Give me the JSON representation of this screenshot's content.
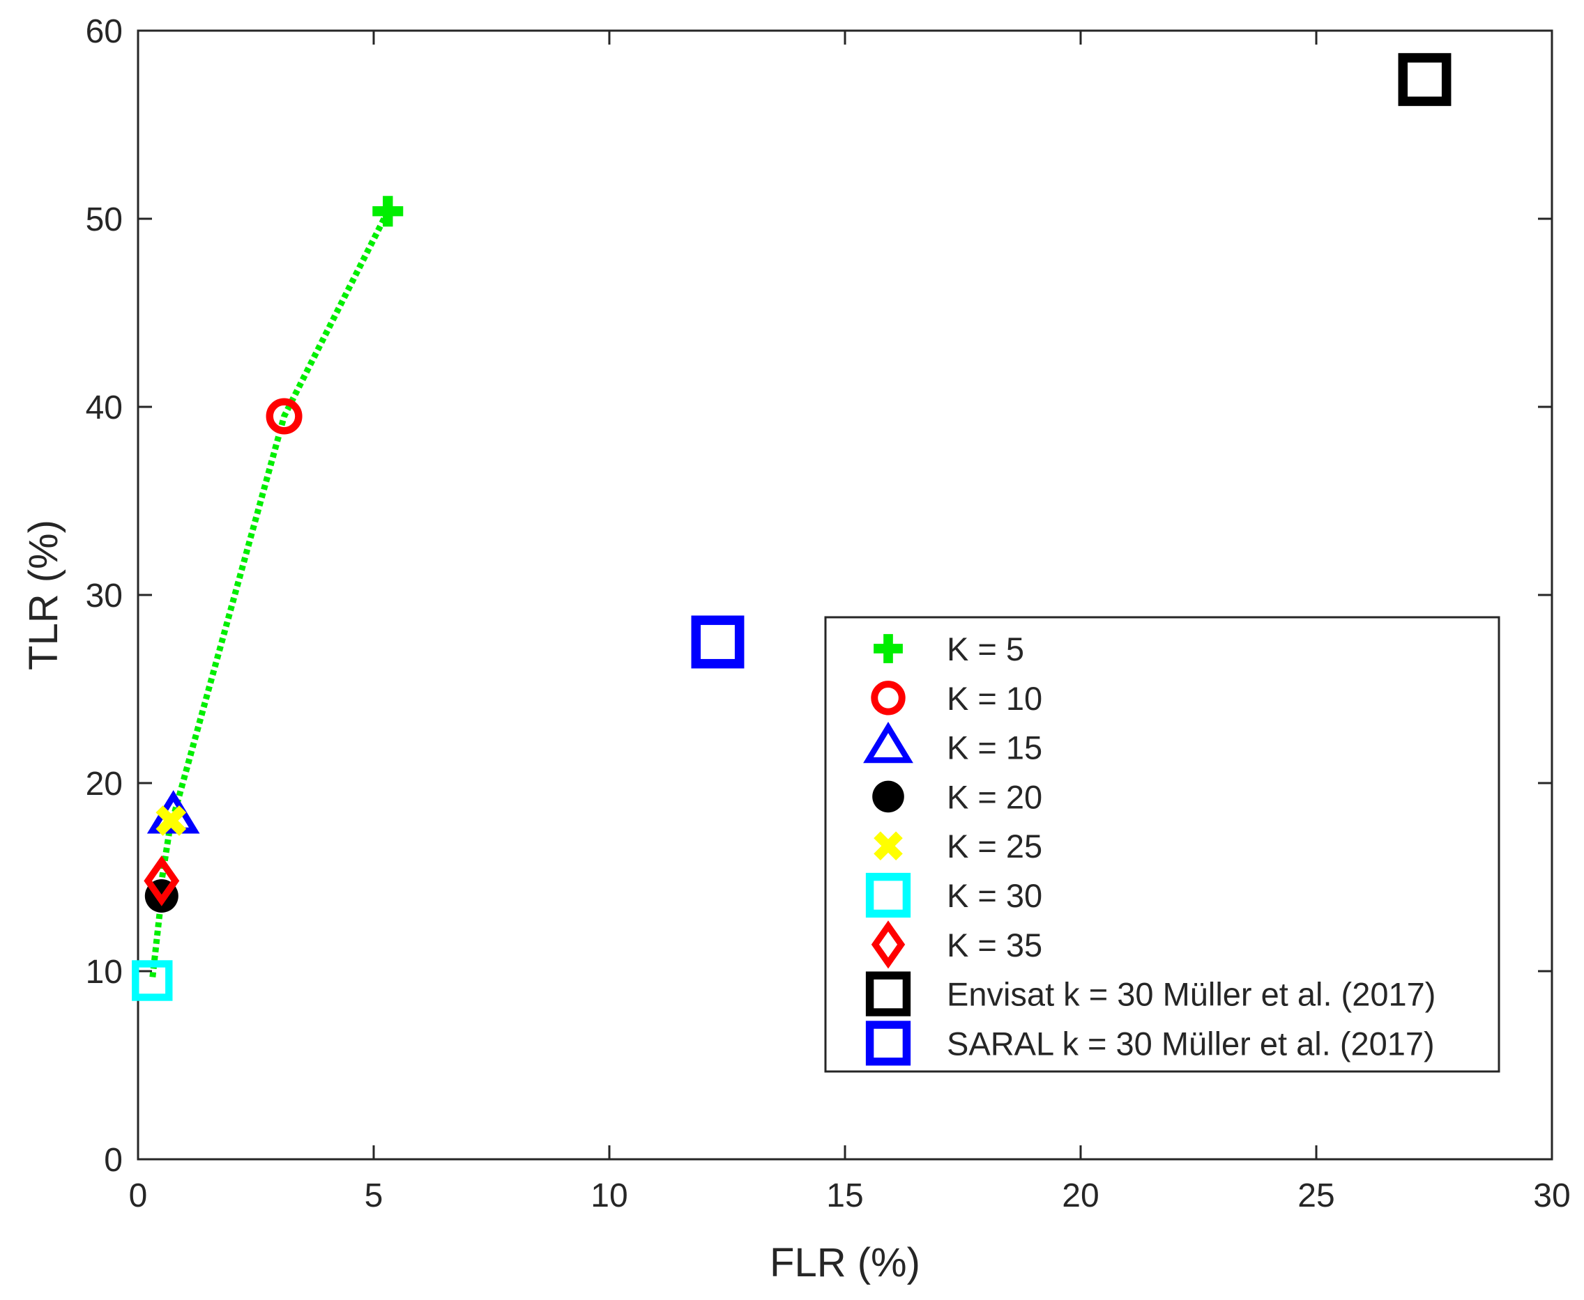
{
  "chart_data": {
    "type": "scatter",
    "xlabel": "FLR (%)",
    "ylabel": "TLR (%)",
    "xlim": [
      0,
      30
    ],
    "ylim": [
      0,
      60
    ],
    "xticks": [
      0,
      5,
      10,
      15,
      20,
      25,
      30
    ],
    "yticks": [
      0,
      10,
      20,
      30,
      40,
      50,
      60
    ],
    "grid": false,
    "legend_position": "bottom-right",
    "curve": {
      "color": "#00ee00",
      "style": "dotted",
      "points": [
        [
          5.3,
          50.4
        ],
        [
          3.1,
          39.5
        ],
        [
          0.75,
          18.2
        ],
        [
          0.7,
          18.0
        ],
        [
          0.5,
          14.8
        ],
        [
          0.5,
          14.0
        ],
        [
          0.3,
          9.5
        ]
      ]
    },
    "series": [
      {
        "name": "K = 5",
        "marker": "plus",
        "color": "#00ee00",
        "x": 5.3,
        "y": 50.4
      },
      {
        "name": "K = 10",
        "marker": "circle",
        "color": "#ff0000",
        "x": 3.1,
        "y": 39.5
      },
      {
        "name": "K = 15",
        "marker": "triangle",
        "color": "#0000ff",
        "x": 0.75,
        "y": 18.2
      },
      {
        "name": "K = 20",
        "marker": "filled-circle",
        "color": "#000000",
        "x": 0.5,
        "y": 14.0
      },
      {
        "name": "K = 25",
        "marker": "x",
        "color": "#ffff00",
        "x": 0.7,
        "y": 18.0
      },
      {
        "name": "K = 30",
        "marker": "square",
        "color": "#00ffff",
        "x": 0.3,
        "y": 9.5
      },
      {
        "name": "K = 35",
        "marker": "diamond",
        "color": "#ff0000",
        "x": 0.5,
        "y": 14.8
      },
      {
        "name": "Envisat k = 30 Müller et al. (2017)",
        "marker": "square",
        "color": "#000000",
        "x": 27.3,
        "y": 57.4
      },
      {
        "name": "SARAL k = 30 Müller et al. (2017)",
        "marker": "square",
        "color": "#0000ff",
        "x": 12.3,
        "y": 27.5
      }
    ]
  }
}
